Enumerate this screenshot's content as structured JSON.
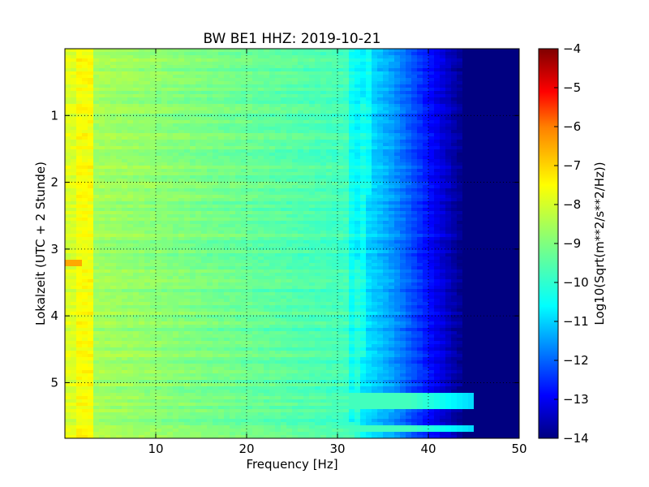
{
  "chart_data": {
    "type": "heatmap",
    "title": "BW BE1 HHZ: 2019-10-21",
    "xlabel": "Frequency [Hz]",
    "ylabel": "Lokalzeit (UTC + 2 Stunde)",
    "xlim": [
      0,
      50
    ],
    "ylim": [
      0,
      5.833
    ],
    "y_inverted": true,
    "x_ticks": [
      10,
      20,
      30,
      40,
      50
    ],
    "y_ticks": [
      1,
      2,
      3,
      4,
      5
    ],
    "grid": true,
    "colormap": "jet",
    "colorbar": {
      "label": "Log10(Sqrt(m**2/s**2/Hz))",
      "range": [
        -14,
        -4
      ],
      "ticks": [
        -4,
        -5,
        -6,
        -7,
        -8,
        -9,
        -10,
        -11,
        -12,
        -13,
        -14
      ]
    },
    "features": {
      "low_freq_band_hz": [
        1,
        3
      ],
      "low_freq_level": -7.8,
      "mid_level_at_5hz": -8.7,
      "mid_level_at_25hz": -9.4,
      "transition_start_hz": 31,
      "transition_end_hz": 44,
      "high_freq_level": -14,
      "narrow_line_start_hz": 32,
      "narrow_line_end_hz": 33.5,
      "event_near_t": 3.23,
      "event_near_f_hz": 1
    }
  },
  "colors": {
    "jet_stops": [
      "#00007f",
      "#0000ff",
      "#007fff",
      "#00ffff",
      "#7fff7f",
      "#ffff00",
      "#ff7f00",
      "#ff0000",
      "#7f0000"
    ]
  }
}
